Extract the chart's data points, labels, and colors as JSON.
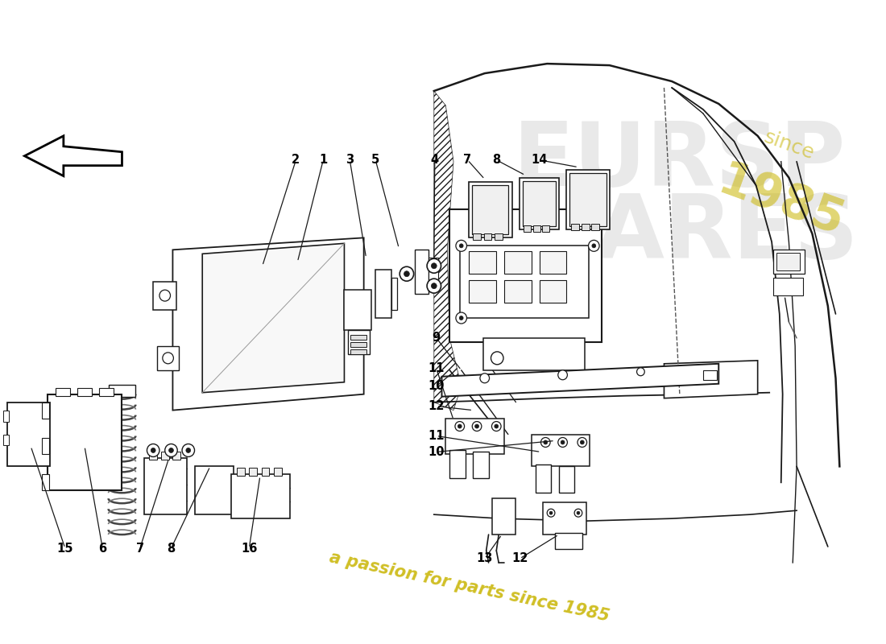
{
  "bg_color": "#ffffff",
  "fig_width": 11.0,
  "fig_height": 8.0,
  "dpi": 100,
  "watermark_text": "a passion for parts since 1985",
  "watermark_color": "#c8b400",
  "logo_color": "#cccccc",
  "line_color": "#1a1a1a",
  "label_fontsize": 10.5
}
